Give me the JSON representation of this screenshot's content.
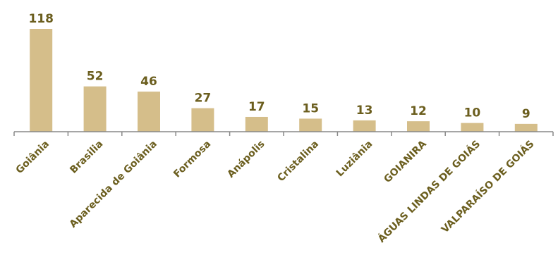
{
  "chart_data": {
    "type": "bar",
    "categories": [
      "Goiânia",
      "Brasilia",
      "Aparecida de Goiânia",
      "Formosa",
      "Anápolis",
      "Cristalina",
      "Luziânia",
      "GOIANIRA",
      "ÁGUAS LINDAS DE GOIÁS",
      "VALPARAÍSO DE GOIÁS"
    ],
    "values": [
      118,
      52,
      46,
      27,
      17,
      15,
      13,
      12,
      10,
      9
    ],
    "ylim": [
      0,
      118
    ],
    "grid": false,
    "legend": "none",
    "colors": {
      "bar": "#D5BE8A",
      "text": "#6B5E1E",
      "axis": "#888888"
    }
  }
}
